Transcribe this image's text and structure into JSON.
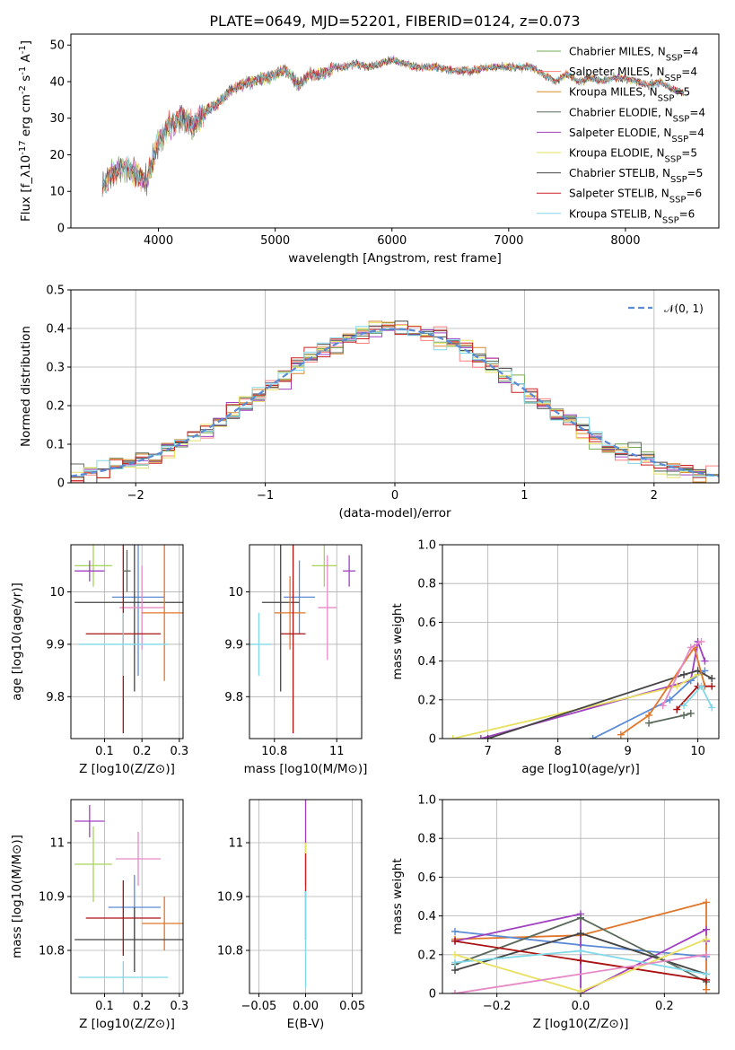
{
  "figure": {
    "title": "PLATE=0649, MJD=52201, FIBERID=0124, z=0.073"
  },
  "chart_data": [
    {
      "id": "spectrum",
      "type": "line",
      "title": "PLATE=0649, MJD=52201, FIBERID=0124, z=0.073",
      "xlabel": "wavelength [Angstrom, rest frame]",
      "ylabel": "Flux [f_λ10^-17 erg cm^-2 s^-1 A^-1]",
      "xlim": [
        3250,
        8800
      ],
      "ylim": [
        0,
        53
      ],
      "xticks": [
        4000,
        5000,
        6000,
        7000,
        8000
      ],
      "yticks": [
        0,
        10,
        20,
        30,
        40,
        50
      ],
      "legend": "top-right",
      "series": [
        {
          "name": "Chabrier MILES, N_SSP=4",
          "color": "#77aa55"
        },
        {
          "name": "Salpeter MILES, N_SSP=4",
          "color": "#ff7f7f"
        },
        {
          "name": "Kroupa MILES, N_SSP=5",
          "color": "#d98a2e"
        },
        {
          "name": "Chabrier ELODIE, N_SSP=4",
          "color": "#5a6a5a"
        },
        {
          "name": "Salpeter ELODIE, N_SSP=4",
          "color": "#a040c0"
        },
        {
          "name": "Kroupa ELODIE, N_SSP=5",
          "color": "#e8e060"
        },
        {
          "name": "Chabrier STELIB, N_SSP=5",
          "color": "#444444"
        },
        {
          "name": "Salpeter STELIB, N_SSP=6",
          "color": "#cc2222"
        },
        {
          "name": "Kroupa STELIB, N_SSP=6",
          "color": "#80d8e8"
        }
      ],
      "continuum": {
        "x": [
          3500,
          3600,
          3700,
          3800,
          3900,
          4000,
          4100,
          4200,
          4300,
          4400,
          4500,
          4600,
          4700,
          4800,
          4900,
          5000,
          5100,
          5200,
          5300,
          5400,
          5500,
          5600,
          5700,
          5800,
          5900,
          6000,
          6100,
          6200,
          6300,
          6400,
          6500,
          6600,
          6700,
          6800,
          6900,
          7000,
          7100,
          7200,
          7300,
          7400,
          7500,
          7600,
          7700,
          7800,
          7900,
          8000,
          8100,
          8200,
          8300,
          8400,
          8500
        ],
        "y": [
          10,
          15,
          17,
          15,
          13,
          24,
          28,
          30,
          28,
          32,
          34,
          37,
          39,
          40,
          41,
          42,
          43,
          39,
          42,
          42,
          44,
          44,
          45,
          44,
          45,
          46,
          45,
          44,
          44,
          44,
          43,
          43,
          43,
          44,
          44,
          44,
          44,
          44,
          42,
          40,
          42,
          40,
          41,
          40,
          41,
          41,
          40,
          39,
          40,
          38,
          37
        ]
      }
    },
    {
      "id": "residual-histogram",
      "type": "bar",
      "xlabel": "(data-model)/error",
      "ylabel": "Normed distribution",
      "xlim": [
        -2.5,
        2.5
      ],
      "ylim": [
        0,
        0.5
      ],
      "xticks": [
        -2,
        -1,
        0,
        1,
        2
      ],
      "yticks": [
        0.0,
        0.1,
        0.2,
        0.3,
        0.4,
        0.5
      ],
      "legend": "top-right",
      "reference": {
        "name": "𝒩(0, 1)",
        "color": "#5b8bd6"
      },
      "series_colors": [
        "#77aa55",
        "#ff7f7f",
        "#d98a2e",
        "#5a6a5a",
        "#a040c0",
        "#e8e060",
        "#444444",
        "#cc2222",
        "#80d8e8"
      ]
    },
    {
      "id": "age-vs-z",
      "type": "scatter",
      "xlabel": "Z [log10(Z/Z⊙)]",
      "ylabel": "age [log10(age/yr)]",
      "xlim": [
        0.01,
        0.31
      ],
      "ylim": [
        9.72,
        10.09
      ],
      "xticks": [
        0.1,
        0.2,
        0.3
      ],
      "yticks": [
        9.8,
        9.9,
        10.0
      ],
      "points": [
        {
          "x": 0.07,
          "y": 10.05,
          "xerr": 0.05,
          "yerr": 0.04,
          "color": "#a7d35a"
        },
        {
          "x": 0.06,
          "y": 10.04,
          "xerr": 0.04,
          "yerr": 0.02,
          "color": "#a040c0"
        },
        {
          "x": 0.19,
          "y": 9.99,
          "xerr": 0.07,
          "yerr": 0.15,
          "color": "#5b8bd6"
        },
        {
          "x": 0.18,
          "y": 9.98,
          "xerr": 0.16,
          "yerr": 0.17,
          "color": "#444444"
        },
        {
          "x": 0.2,
          "y": 9.97,
          "xerr": 0.06,
          "yerr": 0.08,
          "color": "#e68ac7"
        },
        {
          "x": 0.26,
          "y": 9.96,
          "xerr": 0.06,
          "yerr": 0.13,
          "color": "#e0762a"
        },
        {
          "x": 0.15,
          "y": 9.92,
          "xerr": 0.1,
          "yerr": 0.19,
          "color": "#aa1111"
        },
        {
          "x": 0.15,
          "y": 9.9,
          "xerr": 0.12,
          "yerr": 0.06,
          "color": "#80d8e8"
        },
        {
          "x": 0.16,
          "y": 10.04,
          "xerr": 0.01,
          "yerr": 0.04,
          "color": "#5a6a5a"
        }
      ]
    },
    {
      "id": "age-vs-mass",
      "type": "scatter",
      "xlabel": "mass [log10(M/M⊙)]",
      "ylabel": "",
      "xlim": [
        10.72,
        11.08
      ],
      "ylim": [
        9.72,
        10.09
      ],
      "xticks": [
        10.8,
        11.0
      ],
      "yticks": [
        9.8,
        9.9,
        10.0
      ],
      "points": [
        {
          "x": 10.96,
          "y": 10.05,
          "xerr": 0.04,
          "yerr": 0.04,
          "color": "#a7d35a"
        },
        {
          "x": 11.04,
          "y": 10.04,
          "xerr": 0.02,
          "yerr": 0.03,
          "color": "#a040c0"
        },
        {
          "x": 10.88,
          "y": 9.99,
          "xerr": 0.05,
          "yerr": 0.07,
          "color": "#5b8bd6"
        },
        {
          "x": 10.82,
          "y": 9.98,
          "xerr": 0.06,
          "yerr": 0.17,
          "color": "#444444"
        },
        {
          "x": 10.97,
          "y": 9.97,
          "xerr": 0.03,
          "yerr": 0.1,
          "color": "#e68ac7"
        },
        {
          "x": 10.85,
          "y": 9.96,
          "xerr": 0.05,
          "yerr": 0.07,
          "color": "#e0762a"
        },
        {
          "x": 10.86,
          "y": 9.92,
          "xerr": 0.04,
          "yerr": 0.19,
          "color": "#aa1111"
        },
        {
          "x": 10.75,
          "y": 9.9,
          "xerr": 0.04,
          "yerr": 0.06,
          "color": "#80d8e8"
        }
      ]
    },
    {
      "id": "mass-weight-vs-age",
      "type": "line",
      "xlabel": "age [log10(age/yr)]",
      "ylabel": "mass weight",
      "xlim": [
        6.35,
        10.3
      ],
      "ylim": [
        0,
        1.0
      ],
      "xticks": [
        7,
        8,
        9,
        10
      ],
      "yticks": [
        0.0,
        0.2,
        0.4,
        0.6,
        0.8,
        1.0
      ],
      "grid": true,
      "series": [
        {
          "color": "#a040c0",
          "x": [
            6.9,
            9.9,
            10.0,
            10.1
          ],
          "y": [
            0.0,
            0.3,
            0.5,
            0.4
          ]
        },
        {
          "color": "#5b8bd6",
          "x": [
            8.5,
            9.6,
            9.9,
            10.1
          ],
          "y": [
            0.0,
            0.2,
            0.3,
            0.35
          ]
        },
        {
          "color": "#e8e060",
          "x": [
            6.5,
            9.7,
            10.0
          ],
          "y": [
            0.0,
            0.27,
            0.33
          ]
        },
        {
          "color": "#444444",
          "x": [
            7.0,
            9.8,
            10.0,
            10.2
          ],
          "y": [
            0.0,
            0.33,
            0.35,
            0.31
          ]
        },
        {
          "color": "#e0762a",
          "x": [
            8.9,
            9.3,
            9.95,
            10.1
          ],
          "y": [
            0.02,
            0.12,
            0.47,
            0.27
          ]
        },
        {
          "color": "#e68ac7",
          "x": [
            9.5,
            9.9,
            10.05
          ],
          "y": [
            0.17,
            0.47,
            0.5
          ]
        },
        {
          "color": "#aa1111",
          "x": [
            9.7,
            10.0,
            10.2
          ],
          "y": [
            0.15,
            0.27,
            0.27
          ]
        },
        {
          "color": "#80d8e8",
          "x": [
            9.8,
            10.05,
            10.2
          ],
          "y": [
            0.17,
            0.27,
            0.16
          ]
        },
        {
          "color": "#5a6a5a",
          "x": [
            9.3,
            9.8,
            9.9
          ],
          "y": [
            0.08,
            0.12,
            0.13
          ]
        }
      ]
    },
    {
      "id": "mass-vs-z",
      "type": "scatter",
      "xlabel": "Z [log10(Z/Z⊙)]",
      "ylabel": "mass [log10(M/M⊙)]",
      "xlim": [
        0.01,
        0.31
      ],
      "ylim": [
        10.72,
        11.08
      ],
      "xticks": [
        0.1,
        0.2,
        0.3
      ],
      "yticks": [
        10.8,
        10.9,
        11.0
      ],
      "points": [
        {
          "x": 0.06,
          "y": 11.04,
          "xerr": 0.04,
          "yerr": 0.03,
          "color": "#a040c0"
        },
        {
          "x": 0.07,
          "y": 10.96,
          "xerr": 0.05,
          "yerr": 0.07,
          "color": "#a7d35a"
        },
        {
          "x": 0.19,
          "y": 10.97,
          "xerr": 0.06,
          "yerr": 0.05,
          "color": "#e68ac7"
        },
        {
          "x": 0.18,
          "y": 10.88,
          "xerr": 0.07,
          "yerr": 0.06,
          "color": "#5b8bd6"
        },
        {
          "x": 0.15,
          "y": 10.86,
          "xerr": 0.1,
          "yerr": 0.07,
          "color": "#aa1111"
        },
        {
          "x": 0.26,
          "y": 10.85,
          "xerr": 0.06,
          "yerr": 0.05,
          "color": "#e0762a"
        },
        {
          "x": 0.18,
          "y": 10.82,
          "xerr": 0.16,
          "yerr": 0.06,
          "color": "#444444"
        },
        {
          "x": 0.15,
          "y": 10.75,
          "xerr": 0.12,
          "yerr": 0.03,
          "color": "#80d8e8"
        }
      ]
    },
    {
      "id": "mass-vs-ebv",
      "type": "scatter",
      "xlabel": "E(B-V)",
      "ylabel": "",
      "xlim": [
        -0.06,
        0.06
      ],
      "ylim": [
        10.72,
        11.08
      ],
      "xticks": [
        -0.05,
        0.0,
        0.05
      ],
      "xticklabels": [
        "−0.05",
        "0.00",
        "0.05"
      ],
      "yticks": [
        10.8,
        10.9,
        11.0
      ],
      "points": [
        {
          "x": 0.0,
          "y": 11.0,
          "yerr": 0.08,
          "color": "#a040c0"
        },
        {
          "x": 0.0,
          "y": 10.95,
          "yerr": 0.05,
          "color": "#e8e060"
        },
        {
          "x": 0.0,
          "y": 10.9,
          "yerr": 0.08,
          "color": "#cc2222"
        },
        {
          "x": 0.0,
          "y": 10.82,
          "yerr": 0.09,
          "color": "#80d8e8"
        }
      ]
    },
    {
      "id": "mass-weight-vs-z",
      "type": "line",
      "xlabel": "Z [log10(Z/Z⊙)]",
      "ylabel": "mass weight",
      "xlim": [
        -0.33,
        0.33
      ],
      "ylim": [
        0,
        1.0
      ],
      "xticks": [
        -0.2,
        0.0,
        0.2
      ],
      "xticklabels": [
        "−0.2",
        "0.0",
        "0.2"
      ],
      "yticks": [
        0.0,
        0.2,
        0.4,
        0.6,
        0.8,
        1.0
      ],
      "grid": true,
      "series": [
        {
          "color": "#e0762a",
          "x": [
            -0.3,
            0.0,
            0.3,
            0.3
          ],
          "y": [
            0.28,
            0.3,
            0.47,
            0.02
          ]
        },
        {
          "color": "#5b8bd6",
          "x": [
            -0.3,
            0.0,
            0.3
          ],
          "y": [
            0.32,
            0.25,
            0.19
          ]
        },
        {
          "color": "#a040c0",
          "x": [
            -0.3,
            0.0,
            0.0,
            0.3,
            0.3
          ],
          "y": [
            0.27,
            0.41,
            0.0,
            0.33,
            0.27
          ]
        },
        {
          "color": "#444444",
          "x": [
            -0.3,
            0.0,
            0.3
          ],
          "y": [
            0.12,
            0.31,
            0.1
          ]
        },
        {
          "color": "#5a6a5a",
          "x": [
            -0.3,
            0.0,
            0.3
          ],
          "y": [
            0.15,
            0.39,
            0.06
          ]
        },
        {
          "color": "#aa1111",
          "x": [
            -0.3,
            0.0,
            0.3
          ],
          "y": [
            0.27,
            0.17,
            0.07
          ]
        },
        {
          "color": "#80d8e8",
          "x": [
            -0.3,
            0.0,
            0.3
          ],
          "y": [
            0.16,
            0.22,
            0.1
          ]
        },
        {
          "color": "#e8e060",
          "x": [
            -0.3,
            0.0,
            0.3
          ],
          "y": [
            0.2,
            0.01,
            0.28
          ]
        },
        {
          "color": "#e68ac7",
          "x": [
            -0.3,
            -0.3,
            0.3
          ],
          "y": [
            0.0,
            0.0,
            0.2
          ]
        }
      ]
    }
  ]
}
